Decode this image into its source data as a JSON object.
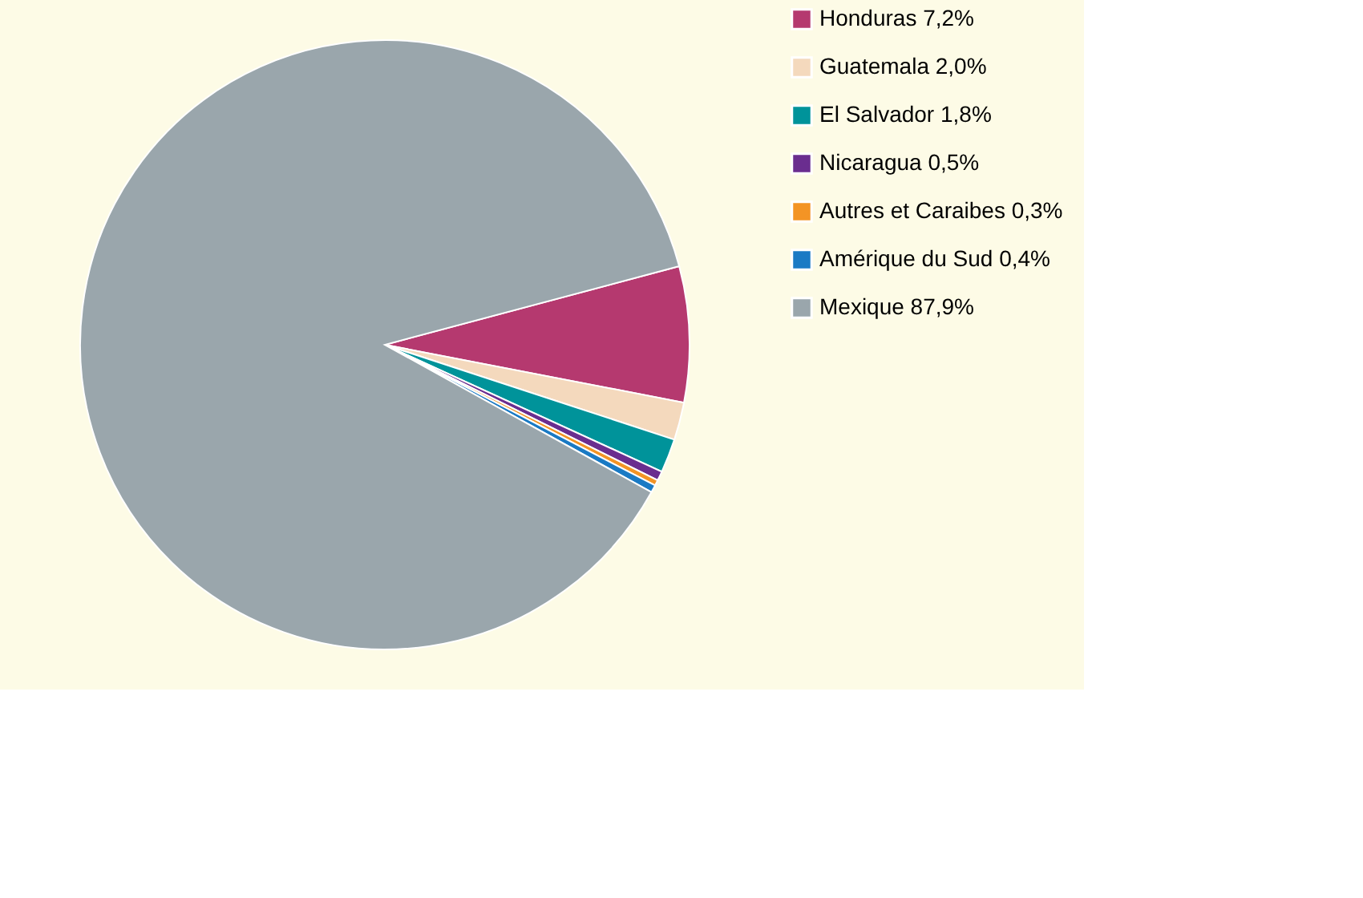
{
  "chart_data": {
    "type": "pie",
    "categories": [
      "Honduras",
      "Guatemala",
      "El Salvador",
      "Nicaragua",
      "Autres et Caraibes",
      "Amérique du Sud",
      "Mexique"
    ],
    "values": [
      7.2,
      2.0,
      1.8,
      0.5,
      0.3,
      0.4,
      87.9
    ],
    "value_labels": [
      "7,2%",
      "2,0%",
      "1,8%",
      "0,5%",
      "0,3%",
      "0,4%",
      "87,9%"
    ],
    "colors": [
      "#b5396f",
      "#f4d9bd",
      "#00939a",
      "#6a2d8f",
      "#f39425",
      "#1a7ac4",
      "#9aa6ac"
    ],
    "legend": "right"
  }
}
